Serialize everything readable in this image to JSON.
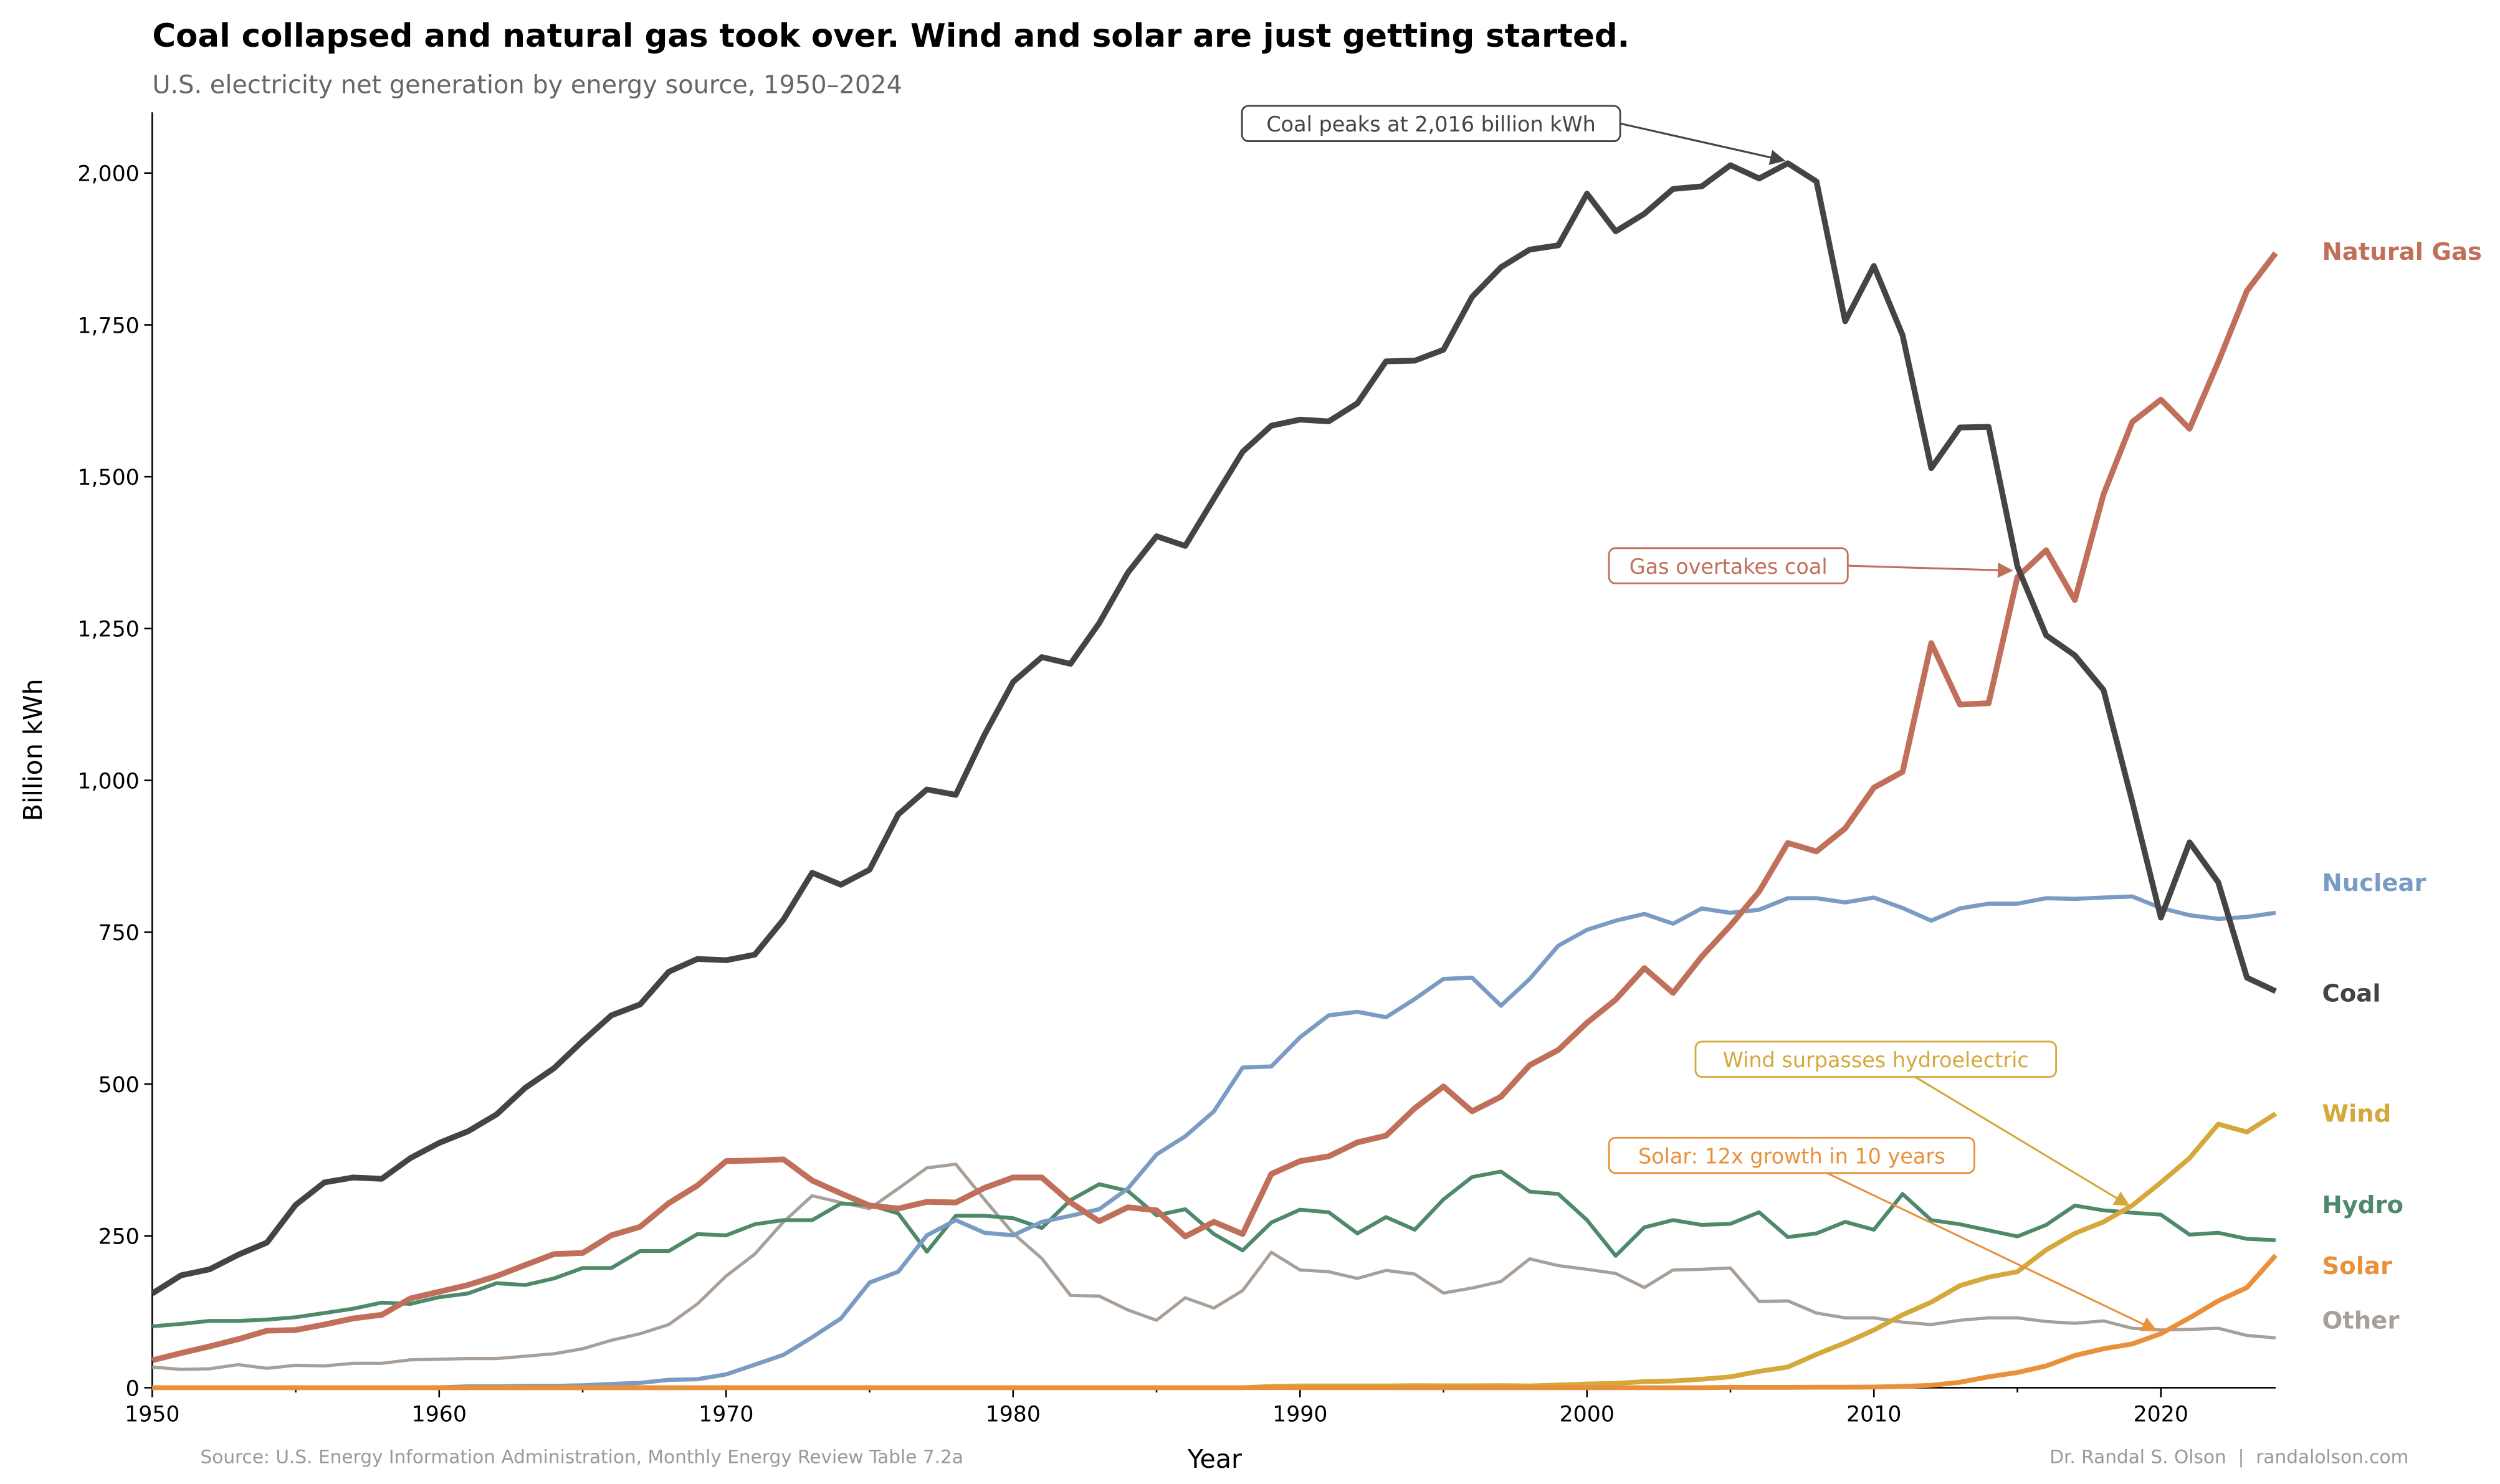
{
  "chart_data": {
    "type": "line",
    "title": "Coal collapsed and natural gas took over. Wind and solar are just getting started.",
    "subtitle": "U.S. electricity net generation by energy source, 1950–2024",
    "xlabel": "Year",
    "ylabel": "Billion kWh",
    "xlim": [
      1950,
      2024
    ],
    "ylim": [
      0,
      2100
    ],
    "xticks": [
      1950,
      1960,
      1970,
      1980,
      1990,
      2000,
      2010,
      2020
    ],
    "yticks": [
      0,
      250,
      500,
      750,
      1000,
      1250,
      1500,
      1750,
      2000
    ],
    "ytick_labels": [
      "0",
      "250",
      "500",
      "750",
      "1,000",
      "1,250",
      "1,500",
      "1,750",
      "2,000"
    ],
    "grid": false,
    "legend": "direct labels at right end of lines",
    "x_start": 1950,
    "series": [
      {
        "name": "Coal",
        "color": "#444444",
        "values": [
          155,
          185,
          195,
          219,
          239,
          301,
          338,
          346,
          344,
          378,
          403,
          422,
          450,
          494,
          526,
          571,
          613,
          631,
          685,
          706,
          704,
          713,
          771,
          848,
          828,
          853,
          944,
          985,
          976,
          1075,
          1162,
          1203,
          1192,
          1259,
          1342,
          1402,
          1386,
          1464,
          1541,
          1584,
          1594,
          1591,
          1621,
          1690,
          1691,
          1709,
          1796,
          1845,
          1874,
          1881,
          1966,
          1904,
          1933,
          1974,
          1978,
          2013,
          1991,
          2016,
          1986,
          1756,
          1847,
          1733,
          1514,
          1581,
          1582,
          1352,
          1239,
          1206,
          1149,
          965,
          774,
          898,
          832,
          675,
          653
        ]
      },
      {
        "name": "Natural Gas",
        "color": "#c0705a",
        "values": [
          45,
          57,
          68,
          80,
          94,
          95,
          104,
          114,
          120,
          147,
          158,
          169,
          184,
          202,
          220,
          222,
          251,
          265,
          304,
          333,
          373,
          374,
          376,
          341,
          320,
          300,
          295,
          306,
          305,
          329,
          346,
          346,
          305,
          274,
          297,
          292,
          249,
          273,
          253,
          352,
          373,
          381,
          404,
          415,
          460,
          496,
          455,
          479,
          531,
          556,
          601,
          639,
          691,
          650,
          710,
          761,
          817,
          897,
          883,
          921,
          988,
          1014,
          1226,
          1125,
          1127,
          1335,
          1379,
          1297,
          1471,
          1590,
          1627,
          1579,
          1689,
          1806,
          1868
        ]
      },
      {
        "name": "Nuclear",
        "color": "#7a9cc4",
        "values": [
          0,
          0,
          0,
          0,
          0,
          0,
          0,
          0.1,
          0.2,
          0.2,
          0.5,
          2,
          2,
          3,
          3,
          4,
          6,
          8,
          13,
          14,
          22,
          38,
          54,
          83,
          114,
          173,
          191,
          251,
          276,
          255,
          251,
          273,
          283,
          294,
          328,
          384,
          414,
          455,
          527,
          529,
          577,
          613,
          619,
          610,
          640,
          673,
          675,
          629,
          673,
          728,
          754,
          769,
          780,
          764,
          789,
          782,
          787,
          806,
          806,
          799,
          807,
          790,
          769,
          789,
          797,
          797,
          806,
          805,
          807,
          809,
          790,
          778,
          772,
          775,
          782
        ]
      },
      {
        "name": "Wind",
        "color": "#d4a83a",
        "values": [
          0,
          0,
          0,
          0,
          0,
          0,
          0,
          0,
          0,
          0,
          0,
          0,
          0,
          0,
          0,
          0,
          0,
          0,
          0,
          0,
          0,
          0,
          0,
          0,
          0,
          0,
          0,
          0,
          0,
          0,
          0,
          0,
          0,
          0,
          0,
          0,
          0,
          0,
          0,
          2,
          3,
          3,
          3,
          3,
          3.4,
          3.2,
          3.2,
          3.3,
          3,
          4.5,
          6,
          7,
          10,
          11,
          14,
          18,
          27,
          34,
          55,
          74,
          95,
          120,
          141,
          168,
          182,
          191,
          227,
          254,
          273,
          300,
          338,
          378,
          434,
          421,
          451
        ]
      },
      {
        "name": "Hydro",
        "color": "#4e8a6a",
        "values": [
          101,
          105,
          110,
          110,
          112,
          116,
          123,
          130,
          140,
          138,
          149,
          155,
          172,
          169,
          180,
          197,
          197,
          225,
          225,
          253,
          251,
          269,
          276,
          276,
          303,
          301,
          287,
          224,
          283,
          283,
          279,
          263,
          309,
          335,
          324,
          284,
          294,
          253,
          226,
          272,
          293,
          289,
          254,
          281,
          260,
          310,
          347,
          356,
          323,
          319,
          276,
          217,
          264,
          276,
          268,
          270,
          289,
          248,
          254,
          273,
          260,
          319,
          276,
          269,
          259,
          249,
          268,
          300,
          292,
          288,
          285,
          252,
          255,
          245,
          243
        ]
      },
      {
        "name": "Solar",
        "color": "#e8903a",
        "values": [
          0,
          0,
          0,
          0,
          0,
          0,
          0,
          0,
          0,
          0,
          0,
          0,
          0,
          0,
          0,
          0,
          0,
          0,
          0,
          0,
          0,
          0,
          0,
          0,
          0,
          0,
          0,
          0,
          0,
          0,
          0,
          0,
          0,
          0,
          0,
          0,
          0,
          0,
          0,
          0,
          0,
          0,
          0,
          0,
          0,
          0,
          0,
          0,
          0,
          0,
          0,
          0,
          0,
          0,
          0,
          0.5,
          0.5,
          0.6,
          0.8,
          0.9,
          1,
          2,
          4,
          9,
          18,
          25,
          36,
          53,
          64,
          72,
          89,
          115,
          143,
          165,
          218
        ]
      },
      {
        "name": "Other",
        "color": "#a89f98",
        "values": [
          34,
          30,
          31,
          38,
          32,
          37,
          36,
          40,
          40,
          46,
          47,
          48,
          48,
          52,
          56,
          64,
          78,
          89,
          104,
          138,
          184,
          220,
          273,
          316,
          305,
          295,
          328,
          362,
          368,
          310,
          254,
          213,
          152,
          151,
          128,
          111,
          148,
          131,
          160,
          223,
          194,
          191,
          180,
          193,
          187,
          156,
          164,
          175,
          212,
          201,
          195,
          188,
          165,
          194,
          195,
          197,
          142,
          143,
          123,
          115,
          115,
          108,
          104,
          111,
          115,
          115,
          109,
          106,
          110,
          98,
          95,
          96,
          98,
          86,
          82
        ]
      }
    ],
    "annotations": [
      {
        "text": "Coal peaks at 2,016 billion kWh",
        "series": "Coal",
        "x": 2007,
        "y": 2016,
        "color": "#444444"
      },
      {
        "text": "Gas overtakes coal",
        "series": "Natural Gas",
        "x": 2015,
        "y": 1345,
        "color": "#c0705a"
      },
      {
        "text": "Wind surpasses hydroelectric",
        "series": "Wind",
        "x": 2019,
        "y": 300,
        "color": "#d4a83a"
      },
      {
        "text": "Solar: 12x growth in 10 years",
        "series": "Solar",
        "x": 2020,
        "y": 89,
        "color": "#e8903a"
      }
    ],
    "source": "Source: U.S. Energy Information Administration, Monthly Energy Review Table 7.2a",
    "credit": "Dr. Randal S. Olson  |  randalolson.com"
  }
}
